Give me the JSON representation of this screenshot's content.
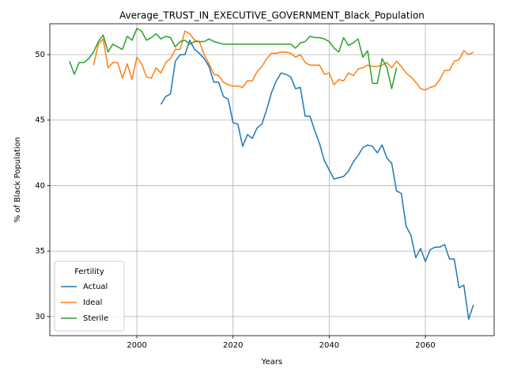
{
  "chart_data": {
    "type": "line",
    "title": "Average_TRUST_IN_EXECUTIVE_GOVERNMENT_Black_Population",
    "xlabel": "Years",
    "ylabel": "% of Black Population",
    "legend_title": "Fertility",
    "legend_loc": "lower left",
    "grid": true,
    "xlim": [
      1981.9,
      2074.3
    ],
    "xticks": [
      2000,
      2020,
      2040,
      2060
    ],
    "ylim": [
      28.54,
      52.36
    ],
    "yticks": [
      30,
      35,
      40,
      45,
      50
    ],
    "x": [
      1986,
      1987,
      1988,
      1989,
      1990,
      1991,
      1992,
      1993,
      1994,
      1995,
      1996,
      1997,
      1998,
      1999,
      2000,
      2001,
      2002,
      2003,
      2004,
      2005,
      2006,
      2007,
      2008,
      2009,
      2010,
      2011,
      2012,
      2013,
      2014,
      2015,
      2016,
      2017,
      2018,
      2019,
      2020,
      2021,
      2022,
      2023,
      2024,
      2025,
      2026,
      2027,
      2028,
      2029,
      2030,
      2031,
      2032,
      2033,
      2034,
      2035,
      2036,
      2037,
      2038,
      2039,
      2040,
      2041,
      2042,
      2043,
      2044,
      2045,
      2046,
      2047,
      2048,
      2049,
      2050,
      2051,
      2052,
      2053,
      2054,
      2055,
      2056,
      2057,
      2058,
      2059,
      2060,
      2061,
      2062,
      2063,
      2064,
      2065,
      2066,
      2067,
      2068,
      2069,
      2070
    ],
    "series": [
      {
        "name": "Actual",
        "color": "#1f77b4",
        "values": [
          null,
          null,
          null,
          null,
          null,
          null,
          null,
          null,
          null,
          null,
          null,
          null,
          null,
          null,
          null,
          null,
          null,
          null,
          null,
          46.2,
          46.8,
          47.0,
          49.5,
          50.0,
          50.0,
          51.1,
          50.4,
          50.1,
          49.7,
          49.1,
          47.9,
          47.9,
          46.8,
          46.6,
          44.8,
          44.7,
          43.0,
          43.9,
          43.6,
          44.4,
          44.7,
          45.8,
          47.1,
          48.0,
          48.6,
          48.5,
          48.3,
          47.4,
          47.5,
          45.3,
          45.3,
          44.2,
          43.2,
          41.9,
          41.2,
          40.5,
          40.6,
          40.7,
          41.1,
          41.8,
          42.3,
          42.9,
          43.1,
          43.0,
          42.5,
          43.1,
          42.1,
          41.7,
          39.6,
          39.4,
          36.9,
          36.2,
          34.5,
          35.2,
          34.2,
          35.1,
          35.3,
          35.3,
          35.5,
          34.4,
          34.4,
          32.2,
          32.4,
          29.8,
          30.9
        ]
      },
      {
        "name": "Ideal",
        "color": "#ff7f0e",
        "values": [
          null,
          null,
          null,
          null,
          null,
          49.2,
          50.8,
          51.2,
          49.0,
          49.4,
          49.4,
          48.2,
          49.3,
          48.1,
          49.8,
          49.3,
          48.3,
          48.2,
          49.0,
          48.6,
          49.4,
          49.7,
          50.4,
          50.4,
          51.8,
          51.6,
          51.1,
          51.0,
          50.0,
          49.3,
          48.5,
          48.4,
          47.9,
          47.7,
          47.6,
          47.6,
          47.5,
          48.0,
          48.0,
          48.7,
          49.1,
          49.7,
          50.1,
          50.1,
          50.2,
          50.2,
          50.1,
          49.8,
          50.0,
          49.4,
          49.2,
          49.2,
          49.2,
          48.5,
          48.6,
          47.7,
          48.1,
          48.0,
          48.6,
          48.4,
          48.9,
          49.0,
          49.2,
          49.1,
          49.1,
          49.2,
          49.4,
          49.0,
          49.5,
          49.1,
          48.6,
          48.3,
          47.9,
          47.4,
          47.3,
          47.5,
          47.6,
          48.1,
          48.8,
          48.8,
          49.5,
          49.6,
          50.3,
          50.0,
          50.2
        ]
      },
      {
        "name": "Sterile",
        "color": "#2ca02c",
        "values": [
          49.5,
          48.5,
          49.4,
          49.4,
          49.7,
          50.2,
          51.0,
          51.5,
          50.2,
          50.8,
          50.6,
          50.4,
          51.4,
          51.1,
          52.0,
          51.8,
          51.1,
          51.3,
          51.6,
          51.2,
          51.4,
          51.3,
          50.6,
          51.0,
          51.1,
          50.8,
          51.0,
          51.0,
          51.0,
          51.2,
          51.0,
          50.9,
          50.8,
          50.8,
          50.8,
          50.8,
          50.8,
          50.8,
          50.8,
          50.8,
          50.8,
          50.8,
          50.8,
          50.8,
          50.8,
          50.8,
          50.8,
          50.5,
          50.9,
          51.0,
          51.4,
          51.3,
          51.3,
          51.2,
          51.0,
          50.5,
          50.2,
          51.3,
          50.7,
          50.9,
          51.2,
          49.8,
          50.3,
          47.8,
          47.8,
          49.7,
          49.0,
          47.4,
          49.0,
          null,
          null,
          null,
          null,
          null,
          null,
          null,
          null,
          null,
          null,
          null,
          null,
          null,
          null,
          null,
          null
        ]
      }
    ]
  }
}
